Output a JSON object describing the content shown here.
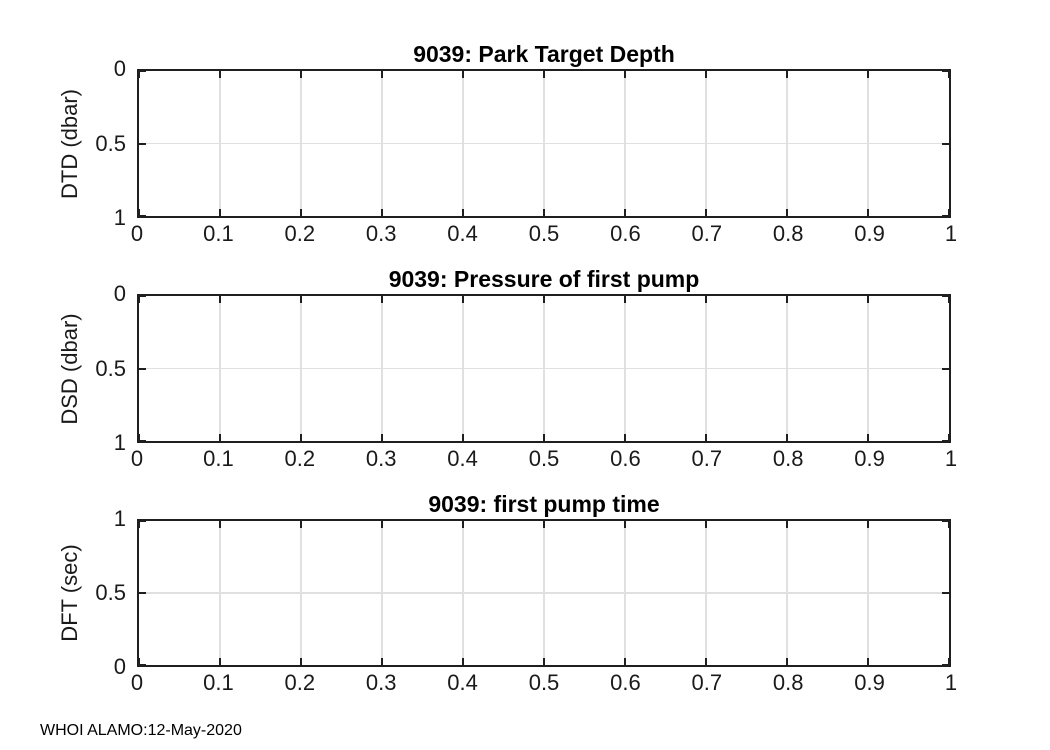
{
  "figure": {
    "footer_text": "WHOI ALAMO:12-May-2020",
    "background_color": "#ffffff",
    "axis_color": "#1f1f1f",
    "grid_color": "#e0e0e0",
    "tick_label_color": "#1a1a1a",
    "title_color": "#000000"
  },
  "chart_data": [
    {
      "type": "line",
      "title": "9039: Park Target Depth",
      "xlabel": "",
      "ylabel": "DTD (dbar)",
      "xlim": [
        0,
        1
      ],
      "ylim": [
        0,
        1
      ],
      "ydir": "reverse",
      "grid": true,
      "legend": null,
      "xticks": [
        "0",
        "0.1",
        "0.2",
        "0.3",
        "0.4",
        "0.5",
        "0.6",
        "0.7",
        "0.8",
        "0.9",
        "1"
      ],
      "yticks_top_to_bottom": [
        "0",
        "0.5",
        "1"
      ],
      "series": []
    },
    {
      "type": "line",
      "title": "9039: Pressure of first pump",
      "xlabel": "",
      "ylabel": "DSD (dbar)",
      "xlim": [
        0,
        1
      ],
      "ylim": [
        0,
        1
      ],
      "ydir": "reverse",
      "grid": true,
      "legend": null,
      "xticks": [
        "0",
        "0.1",
        "0.2",
        "0.3",
        "0.4",
        "0.5",
        "0.6",
        "0.7",
        "0.8",
        "0.9",
        "1"
      ],
      "yticks_top_to_bottom": [
        "0",
        "0.5",
        "1"
      ],
      "series": []
    },
    {
      "type": "line",
      "title": "9039: first pump time",
      "xlabel": "",
      "ylabel": "DFT (sec)",
      "xlim": [
        0,
        1
      ],
      "ylim": [
        0,
        1
      ],
      "ydir": "normal",
      "grid": true,
      "legend": null,
      "xticks": [
        "0",
        "0.1",
        "0.2",
        "0.3",
        "0.4",
        "0.5",
        "0.6",
        "0.7",
        "0.8",
        "0.9",
        "1"
      ],
      "yticks_top_to_bottom": [
        "1",
        "0.5",
        "0"
      ],
      "series": []
    }
  ]
}
